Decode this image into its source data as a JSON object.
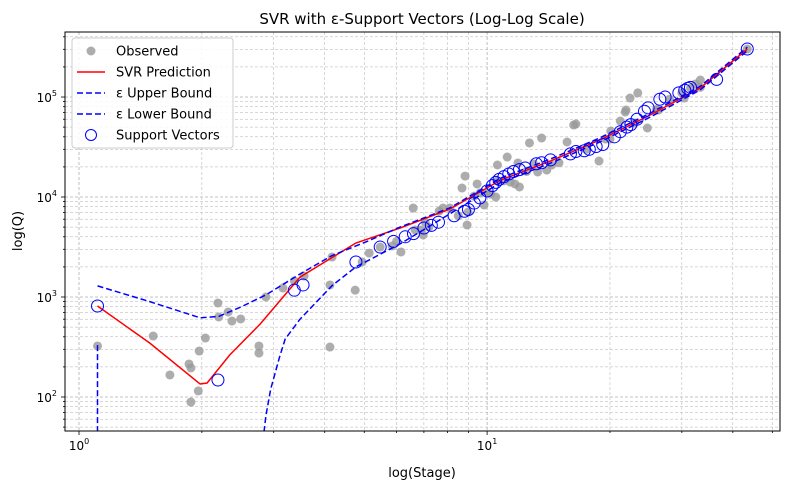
{
  "chart_data": {
    "type": "scatter",
    "title": "SVR with ε-Support Vectors (Log-Log Scale)",
    "xlabel": "log(Stage)",
    "ylabel": "log(Q)",
    "xscale": "log",
    "yscale": "log",
    "xlim": [
      0.924,
      52.2
    ],
    "ylim": [
      45.7,
      447000
    ],
    "grid": "major and minor, dashed",
    "legend_position": "top-left",
    "x_ticks": [
      {
        "base": "10",
        "exp": "0",
        "value": 1
      },
      {
        "base": "10",
        "exp": "1",
        "value": 10
      }
    ],
    "y_ticks": [
      {
        "base": "10",
        "exp": "2",
        "value": 100
      },
      {
        "base": "10",
        "exp": "3",
        "value": 1000
      },
      {
        "base": "10",
        "exp": "4",
        "value": 10000
      },
      {
        "base": "10",
        "exp": "5",
        "value": 100000
      }
    ],
    "legend": [
      {
        "label": "Observed",
        "kind": "marker-filled",
        "color": "#999999"
      },
      {
        "label": "SVR Prediction",
        "kind": "line-solid",
        "color": "#ff0000"
      },
      {
        "label": "ε Upper Bound",
        "kind": "line-dashed",
        "color": "#0000ff"
      },
      {
        "label": "ε Lower Bound",
        "kind": "line-dashed",
        "color": "#0000ff"
      },
      {
        "label": "Support Vectors",
        "kind": "marker-open",
        "color": "#0000ff"
      }
    ],
    "series": [
      {
        "name": "Observed",
        "type": "scatter",
        "color": "#999999",
        "points": [
          [
            1.11,
            324
          ],
          [
            1.52,
            407
          ],
          [
            1.67,
            166
          ],
          [
            1.86,
            214
          ],
          [
            1.88,
            195
          ],
          [
            1.88,
            89
          ],
          [
            1.96,
            115
          ],
          [
            1.97,
            288
          ],
          [
            2.04,
            389
          ],
          [
            2.19,
            871
          ],
          [
            2.2,
            631
          ],
          [
            2.32,
            708
          ],
          [
            2.37,
            575
          ],
          [
            2.49,
            603
          ],
          [
            2.76,
            324
          ],
          [
            2.76,
            275
          ],
          [
            2.87,
            1000
          ],
          [
            3.16,
            1230
          ],
          [
            3.37,
            1450
          ],
          [
            3.56,
            1620
          ],
          [
            4.12,
            1320
          ],
          [
            4.12,
            316
          ],
          [
            4.17,
            2510
          ],
          [
            4.75,
            1170
          ],
          [
            4.94,
            2240
          ],
          [
            5.14,
            2750
          ],
          [
            5.47,
            3160
          ],
          [
            5.85,
            3240
          ],
          [
            6.15,
            2820
          ],
          [
            6.59,
            7760
          ],
          [
            6.66,
            4680
          ],
          [
            6.89,
            4680
          ],
          [
            6.97,
            4170
          ],
          [
            7.05,
            5620
          ],
          [
            7.63,
            7240
          ],
          [
            7.8,
            7760
          ],
          [
            8.11,
            7760
          ],
          [
            8.68,
            12300
          ],
          [
            8.83,
            16200
          ],
          [
            8.93,
            5250
          ],
          [
            8.98,
            7080
          ],
          [
            9.29,
            10200
          ],
          [
            9.45,
            13500
          ],
          [
            9.61,
            11000
          ],
          [
            9.83,
            8320
          ],
          [
            10.2,
            10700
          ],
          [
            10.5,
            10000
          ],
          [
            10.6,
            14500
          ],
          [
            10.6,
            20900
          ],
          [
            11.2,
            25100
          ],
          [
            11.4,
            14100
          ],
          [
            11.7,
            13500
          ],
          [
            11.9,
            21900
          ],
          [
            12.0,
            12600
          ],
          [
            12.7,
            34700
          ],
          [
            13.0,
            21400
          ],
          [
            13.3,
            17800
          ],
          [
            13.6,
            38900
          ],
          [
            14.0,
            18600
          ],
          [
            14.4,
            20900
          ],
          [
            15.7,
            35500
          ],
          [
            16.3,
            52500
          ],
          [
            16.5,
            53700
          ],
          [
            18.8,
            22900
          ],
          [
            19.5,
            38000
          ],
          [
            20.1,
            45700
          ],
          [
            21.2,
            57500
          ],
          [
            21.8,
            70800
          ],
          [
            21.9,
            74100
          ],
          [
            22.4,
            97700
          ],
          [
            23.4,
            110000
          ],
          [
            24.7,
            49000
          ],
          [
            26.3,
            74100
          ],
          [
            30.4,
            97700
          ],
          [
            31.5,
            123000
          ],
          [
            32.4,
            135000
          ],
          [
            33.3,
            148000
          ],
          [
            43.4,
            302000
          ],
          [
            6.0,
            3600
          ],
          [
            7.2,
            5000
          ],
          [
            8.5,
            6500
          ],
          [
            10.0,
            11000
          ],
          [
            11.0,
            14500
          ],
          [
            12.5,
            18000
          ],
          [
            15.0,
            22000
          ],
          [
            17.5,
            30000
          ],
          [
            20.0,
            38000
          ],
          [
            23.0,
            55000
          ],
          [
            26.0,
            75000
          ],
          [
            28.0,
            95000
          ],
          [
            30.0,
            110000
          ],
          [
            33.3,
            125000
          ]
        ]
      },
      {
        "name": "SVR Prediction",
        "type": "line",
        "color": "#ff0000",
        "points": [
          [
            1.11,
            813
          ],
          [
            1.49,
            347
          ],
          [
            1.98,
            135
          ],
          [
            2.06,
            138
          ],
          [
            2.34,
            263
          ],
          [
            2.78,
            537
          ],
          [
            3.48,
            1580
          ],
          [
            4.77,
            3470
          ],
          [
            6.12,
            4900
          ],
          [
            8.11,
            7590
          ],
          [
            10.8,
            14800
          ],
          [
            14.3,
            22900
          ],
          [
            18.9,
            37200
          ],
          [
            25.1,
            66100
          ],
          [
            33.3,
            123000
          ],
          [
            43.4,
            302000
          ]
        ]
      },
      {
        "name": "ε Upper Bound",
        "type": "line",
        "style": "dashed",
        "color": "#0000ff",
        "points": [
          [
            1.11,
            1290
          ],
          [
            1.49,
            900
          ],
          [
            1.98,
            620
          ],
          [
            2.2,
            640
          ],
          [
            2.5,
            800
          ],
          [
            2.87,
            1050
          ],
          [
            3.48,
            1700
          ],
          [
            4.17,
            2600
          ],
          [
            5.0,
            3500
          ],
          [
            6.12,
            5000
          ],
          [
            8.11,
            7800
          ],
          [
            10.8,
            15500
          ],
          [
            14.3,
            24000
          ],
          [
            18.9,
            39000
          ],
          [
            25.1,
            69000
          ],
          [
            33.3,
            128000
          ],
          [
            43.4,
            315000
          ]
        ]
      },
      {
        "name": "ε Lower Bound",
        "type": "line",
        "style": "dashed",
        "color": "#0000ff",
        "segments": [
          [
            [
              1.11,
              330
            ],
            [
              1.11,
              1
            ]
          ],
          [
            [
              2.84,
              1
            ],
            [
              2.87,
              65
            ],
            [
              2.95,
              120
            ],
            [
              3.1,
              250
            ],
            [
              3.2,
              380
            ],
            [
              3.48,
              600
            ],
            [
              4.17,
              1300
            ],
            [
              4.77,
              2000
            ],
            [
              6.12,
              3400
            ],
            [
              8.11,
              6800
            ],
            [
              10.8,
              14000
            ],
            [
              14.3,
              21800
            ],
            [
              18.9,
              35500
            ],
            [
              25.1,
              63000
            ],
            [
              33.3,
              118000
            ],
            [
              43.4,
              290000
            ]
          ]
        ]
      },
      {
        "name": "Support Vectors",
        "type": "scatter",
        "style": "open",
        "color": "#0000ff",
        "points": [
          [
            1.11,
            813
          ],
          [
            2.19,
            148
          ],
          [
            3.37,
            1170
          ],
          [
            3.54,
            1320
          ],
          [
            4.77,
            2240
          ],
          [
            5.47,
            3160
          ],
          [
            5.9,
            3600
          ],
          [
            6.3,
            4000
          ],
          [
            6.6,
            4300
          ],
          [
            7.0,
            4900
          ],
          [
            7.3,
            5200
          ],
          [
            7.6,
            5600
          ],
          [
            8.3,
            6500
          ],
          [
            8.8,
            7200
          ],
          [
            9.0,
            7500
          ],
          [
            9.3,
            8700
          ],
          [
            9.6,
            9800
          ],
          [
            10.0,
            11500
          ],
          [
            10.3,
            13000
          ],
          [
            10.5,
            14000
          ],
          [
            10.7,
            15000
          ],
          [
            11.0,
            16000
          ],
          [
            11.3,
            17000
          ],
          [
            11.6,
            18000
          ],
          [
            12.0,
            18800
          ],
          [
            12.4,
            19500
          ],
          [
            13.2,
            21500
          ],
          [
            13.6,
            22000
          ],
          [
            14.3,
            23500
          ],
          [
            16.0,
            27000
          ],
          [
            16.5,
            28500
          ],
          [
            17.3,
            29000
          ],
          [
            17.8,
            30000
          ],
          [
            18.5,
            32000
          ],
          [
            19.2,
            33500
          ],
          [
            20.5,
            40000
          ],
          [
            21.2,
            45000
          ],
          [
            22.0,
            50000
          ],
          [
            22.5,
            53000
          ],
          [
            23.3,
            60000
          ],
          [
            24.3,
            72000
          ],
          [
            24.8,
            78000
          ],
          [
            26.5,
            95000
          ],
          [
            27.3,
            100000
          ],
          [
            29.5,
            110000
          ],
          [
            30.5,
            117000
          ],
          [
            31.0,
            122000
          ],
          [
            31.5,
            125000
          ],
          [
            36.5,
            150000
          ],
          [
            43.4,
            302000
          ]
        ]
      }
    ]
  }
}
